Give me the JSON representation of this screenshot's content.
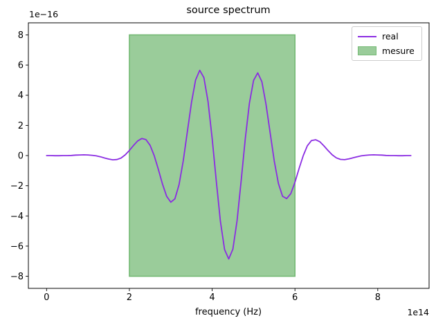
{
  "title": "source spectrum",
  "xlabel": "frequency (Hz)",
  "x_offset_label": "1e14",
  "y_offset_label": "1e−16",
  "colors": {
    "line": "#8a2be2",
    "region_fill": "#9acc9a",
    "region_edge": "#74b974",
    "axes_edge": "#000000",
    "tick_text": "#000000",
    "legend_border": "#cccccc",
    "background": "#ffffff"
  },
  "legend": {
    "position": "upper right",
    "items": [
      {
        "label": "real",
        "type": "line"
      },
      {
        "label": "mesure",
        "type": "patch"
      }
    ]
  },
  "chart_data": {
    "type": "line",
    "title": "source spectrum",
    "xlabel": "frequency (Hz)",
    "ylabel": "",
    "x_unit_scale": "1e14",
    "y_unit_scale": "1e-16",
    "xlim": [
      -0.44,
      9.24
    ],
    "ylim": [
      -8.8,
      8.8
    ],
    "x_ticks": [
      0,
      2,
      4,
      6,
      8
    ],
    "y_ticks": [
      8,
      6,
      4,
      2,
      0,
      -2,
      -4,
      -6,
      -8
    ],
    "grid": false,
    "legend_position": "upper right",
    "series": [
      {
        "name": "real",
        "type": "line",
        "color": "#8a2be2",
        "x_start": 0,
        "x_step": 0.1,
        "y": [
          0,
          0,
          -0.01,
          -0.01,
          0,
          0,
          0.01,
          0.03,
          0.04,
          0.05,
          0.04,
          0.02,
          -0.02,
          -0.08,
          -0.16,
          -0.23,
          -0.28,
          -0.26,
          -0.16,
          0.05,
          0.34,
          0.67,
          0.97,
          1.13,
          1.06,
          0.68,
          0,
          -0.91,
          -1.89,
          -2.7,
          -3.09,
          -2.87,
          -1.93,
          -0.37,
          1.58,
          3.52,
          5.01,
          5.65,
          5.17,
          3.58,
          1.12,
          -1.72,
          -4.37,
          -6.23,
          -6.85,
          -6.2,
          -4.33,
          -1.7,
          1.11,
          3.48,
          4.98,
          5.48,
          4.9,
          3.42,
          1.52,
          -0.36,
          -1.85,
          -2.7,
          -2.85,
          -2.52,
          -1.77,
          -0.85,
          0,
          0.65,
          1,
          1.05,
          0.92,
          0.64,
          0.33,
          0.05,
          -0.15,
          -0.25,
          -0.27,
          -0.22,
          -0.15,
          -0.08,
          -0.02,
          0.02,
          0.04,
          0.05,
          0.04,
          0.03,
          0.01,
          0,
          0,
          -0.01,
          -0.01,
          0,
          0
        ]
      },
      {
        "name": "mesure",
        "type": "region",
        "x_range": [
          2,
          6
        ],
        "y_range": [
          -8,
          8
        ],
        "fill": "#9acc9a",
        "edge": "#74b974"
      }
    ]
  }
}
